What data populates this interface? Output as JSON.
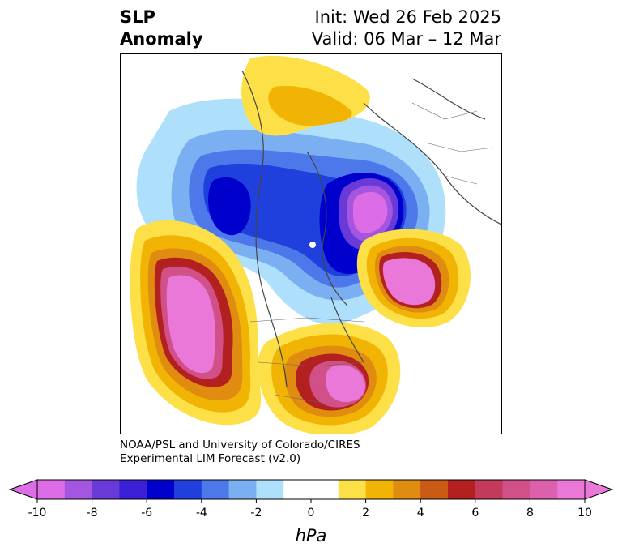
{
  "title": {
    "left_line1": "SLP",
    "left_line2": "Anomaly",
    "right_line1": "Init: Wed 26 Feb 2025",
    "right_line2": "Valid: 06 Mar – 12 Mar"
  },
  "credits": {
    "line1": "NOAA/PSL and University of Colorado/CIRES",
    "line2": "Experimental LIM Forecast (v2.0)"
  },
  "colorbar": {
    "unit": "hPa",
    "ticks": [
      "-10",
      "-8",
      "-6",
      "-4",
      "-2",
      "0",
      "2",
      "4",
      "6",
      "8",
      "10"
    ],
    "colors": [
      "#dc6de6",
      "#a456e0",
      "#6a3ad9",
      "#3a1fd6",
      "#0000cc",
      "#2040dd",
      "#4d78ea",
      "#7ab0f2",
      "#aee0fb",
      "#ffffff",
      "#ffffff",
      "#fde048",
      "#f2b404",
      "#df8c10",
      "#cb5a14",
      "#b32020",
      "#c43a5c",
      "#d25088",
      "#dc60ac",
      "#ea78d8"
    ],
    "extend_low_color": "#dc6de6",
    "extend_high_color": "#ea78d8"
  },
  "map": {
    "projection": "north-polar stereographic",
    "variable": "SLP anomaly"
  }
}
